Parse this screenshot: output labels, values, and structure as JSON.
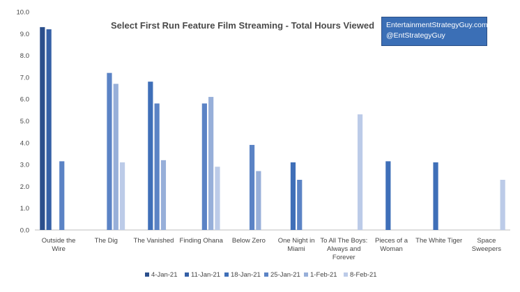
{
  "chart_data": {
    "type": "bar",
    "title": "Select First Run Feature Film Streaming - Total Hours Viewed",
    "xlabel": "",
    "ylabel": "",
    "ylim": [
      0,
      10
    ],
    "yticks": [
      "0.0",
      "1.0",
      "2.0",
      "3.0",
      "4.0",
      "5.0",
      "6.0",
      "7.0",
      "8.0",
      "9.0",
      "10.0"
    ],
    "grid": false,
    "legend_position": "bottom",
    "categories": [
      [
        "Outside the",
        "Wire"
      ],
      [
        "The Dig"
      ],
      [
        "The Vanished"
      ],
      [
        "Finding Ohana"
      ],
      [
        "Below Zero"
      ],
      [
        "One Night in",
        "Miami"
      ],
      [
        "To All The Boys:",
        "Always and",
        "Forever"
      ],
      [
        "Pieces of a",
        "Woman"
      ],
      [
        "The White Tiger"
      ],
      [
        "Space",
        "Sweepers"
      ]
    ],
    "series": [
      {
        "name": "4-Jan-21",
        "color": "#2b4f8c",
        "values": [
          9.3,
          null,
          null,
          null,
          null,
          null,
          null,
          null,
          null,
          null
        ]
      },
      {
        "name": "11-Jan-21",
        "color": "#3560a6",
        "values": [
          9.2,
          null,
          null,
          null,
          null,
          null,
          null,
          null,
          null,
          null
        ]
      },
      {
        "name": "18-Jan-21",
        "color": "#3f6fb8",
        "values": [
          null,
          null,
          6.8,
          null,
          null,
          3.1,
          null,
          3.15,
          3.1,
          null
        ]
      },
      {
        "name": "25-Jan-21",
        "color": "#5b83c5",
        "values": [
          3.15,
          7.2,
          5.8,
          5.8,
          3.9,
          2.3,
          null,
          null,
          null,
          null
        ]
      },
      {
        "name": "1-Feb-21",
        "color": "#97afd9",
        "values": [
          null,
          6.7,
          3.2,
          6.1,
          2.7,
          null,
          null,
          null,
          null,
          null
        ]
      },
      {
        "name": "8-Feb-21",
        "color": "#bccbe8",
        "values": [
          null,
          3.1,
          null,
          2.9,
          null,
          null,
          5.3,
          null,
          null,
          2.3
        ]
      }
    ]
  },
  "watermark": {
    "line1": "EntertainmentStrategyGuy.com",
    "line2": "@EntStrategyGuy"
  },
  "colors": {
    "axis": "#bfbfbf",
    "watermark_bg": "#3b6fb6"
  }
}
